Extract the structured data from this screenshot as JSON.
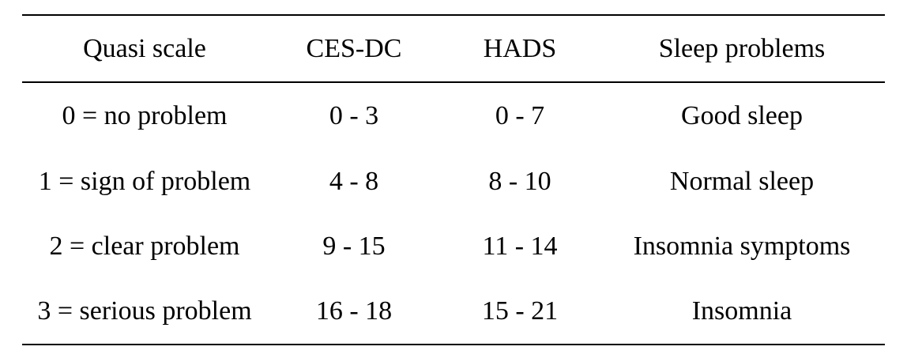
{
  "table": {
    "headers": [
      "Quasi scale",
      "CES-DC",
      "HADS",
      "Sleep problems"
    ],
    "rows": [
      [
        "0 = no problem",
        "0 - 3",
        "0 - 7",
        "Good sleep"
      ],
      [
        "1 = sign of problem",
        "4 - 8",
        "8 - 10",
        "Normal sleep"
      ],
      [
        "2 = clear problem",
        "9 - 15",
        "11 - 14",
        "Insomnia symptoms"
      ],
      [
        "3 = serious problem",
        "16 - 18",
        "15 - 21",
        "Insomnia"
      ]
    ]
  }
}
